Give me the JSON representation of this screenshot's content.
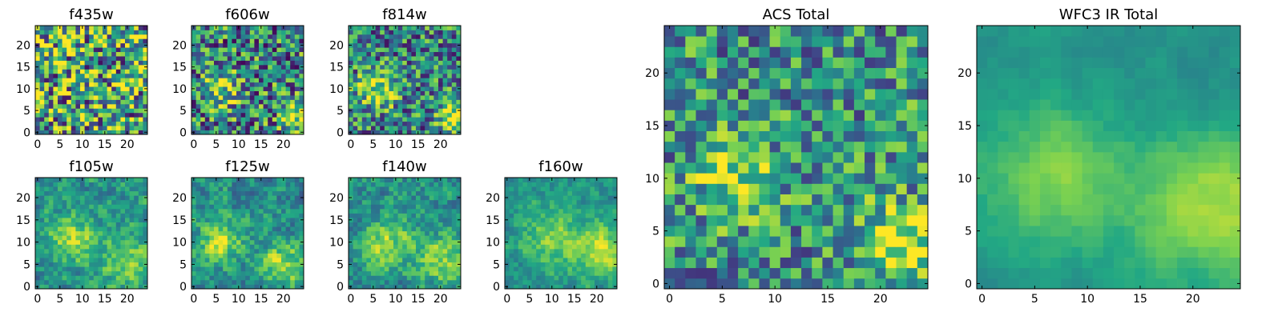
{
  "chart_data": {
    "type": "heatmap",
    "colormap": "viridis",
    "colormap_stops": [
      "#440154",
      "#414487",
      "#2a788e",
      "#22a884",
      "#7ad151",
      "#fde725"
    ],
    "grid_size": [
      25,
      25
    ],
    "panels": [
      {
        "id": "f435w",
        "title": "f435w",
        "xticks": [
          0,
          5,
          10,
          15,
          20
        ],
        "yticks": [
          0,
          5,
          10,
          15,
          20
        ],
        "xlim": [
          -0.5,
          24.5
        ],
        "ylim": [
          -0.5,
          24.5
        ],
        "seed": 11,
        "bias": 0.6,
        "noise": 0.55,
        "smooth": 0,
        "blobs": []
      },
      {
        "id": "f606w",
        "title": "f606w",
        "xticks": [
          0,
          5,
          10,
          15,
          20
        ],
        "yticks": [
          0,
          5,
          10,
          15,
          20
        ],
        "xlim": [
          -0.5,
          24.5
        ],
        "ylim": [
          -0.5,
          24.5
        ],
        "seed": 23,
        "bias": 0.45,
        "noise": 0.45,
        "smooth": 0,
        "blobs": [
          [
            6,
            10,
            3,
            0.4
          ],
          [
            23,
            4,
            2.5,
            0.5
          ]
        ]
      },
      {
        "id": "f814w",
        "title": "f814w",
        "xticks": [
          0,
          5,
          10,
          15,
          20
        ],
        "yticks": [
          0,
          5,
          10,
          15,
          20
        ],
        "xlim": [
          -0.5,
          24.5
        ],
        "ylim": [
          -0.5,
          24.5
        ],
        "seed": 37,
        "bias": 0.45,
        "noise": 0.4,
        "smooth": 0,
        "blobs": [
          [
            6,
            10,
            3,
            0.45
          ],
          [
            23,
            4,
            2.5,
            0.5
          ]
        ]
      },
      {
        "id": "f105w",
        "title": "f105w",
        "xticks": [
          0,
          5,
          10,
          15,
          20
        ],
        "yticks": [
          0,
          5,
          10,
          15,
          20
        ],
        "xlim": [
          -0.5,
          24.5
        ],
        "ylim": [
          -0.5,
          24.5
        ],
        "seed": 41,
        "bias": 0.5,
        "noise": 0.3,
        "smooth": 1,
        "blobs": [
          [
            8,
            11,
            4,
            0.35
          ],
          [
            20,
            6,
            4,
            0.3
          ]
        ]
      },
      {
        "id": "f125w",
        "title": "f125w",
        "xticks": [
          0,
          5,
          10,
          15,
          20
        ],
        "yticks": [
          0,
          5,
          10,
          15,
          20
        ],
        "xlim": [
          -0.5,
          24.5
        ],
        "ylim": [
          -0.5,
          24.5
        ],
        "seed": 53,
        "bias": 0.5,
        "noise": 0.32,
        "smooth": 1,
        "blobs": [
          [
            6,
            10,
            3,
            0.4
          ],
          [
            21,
            5,
            4,
            0.35
          ]
        ]
      },
      {
        "id": "f140w",
        "title": "f140w",
        "xticks": [
          0,
          5,
          10,
          15,
          20
        ],
        "yticks": [
          0,
          5,
          10,
          15,
          20
        ],
        "xlim": [
          -0.5,
          24.5
        ],
        "ylim": [
          -0.5,
          24.5
        ],
        "seed": 67,
        "bias": 0.5,
        "noise": 0.3,
        "smooth": 1,
        "blobs": [
          [
            8,
            10,
            4,
            0.35
          ],
          [
            21,
            6,
            4,
            0.35
          ]
        ]
      },
      {
        "id": "f160w",
        "title": "f160w",
        "xticks": [
          0,
          5,
          10,
          15,
          20
        ],
        "yticks": [
          0,
          5,
          10,
          15,
          20
        ],
        "xlim": [
          -0.5,
          24.5
        ],
        "ylim": [
          -0.5,
          24.5
        ],
        "seed": 79,
        "bias": 0.5,
        "noise": 0.22,
        "smooth": 1,
        "blobs": [
          [
            10,
            11,
            5,
            0.3
          ],
          [
            21,
            8,
            4,
            0.4
          ]
        ]
      },
      {
        "id": "acs-total",
        "title": "ACS Total",
        "xticks": [
          0,
          5,
          10,
          15,
          20
        ],
        "yticks": [
          0,
          5,
          10,
          15,
          20
        ],
        "xlim": [
          -0.5,
          24.5
        ],
        "ylim": [
          -0.5,
          24.5
        ],
        "seed": 97,
        "bias": 0.5,
        "noise": 0.35,
        "smooth": 0,
        "blobs": [
          [
            6,
            10,
            2.5,
            0.4
          ],
          [
            22,
            4,
            2.5,
            0.5
          ]
        ]
      },
      {
        "id": "wfc3-ir-total",
        "title": "WFC3 IR Total",
        "xticks": [
          0,
          5,
          10,
          15,
          20
        ],
        "yticks": [
          0,
          5,
          10,
          15,
          20
        ],
        "xlim": [
          -0.5,
          24.5
        ],
        "ylim": [
          -0.5,
          24.5
        ],
        "seed": 131,
        "bias": 0.5,
        "noise": 0.12,
        "smooth": 2,
        "blobs": [
          [
            7,
            10,
            5,
            0.3
          ],
          [
            22,
            7,
            5,
            0.4
          ]
        ]
      }
    ]
  }
}
